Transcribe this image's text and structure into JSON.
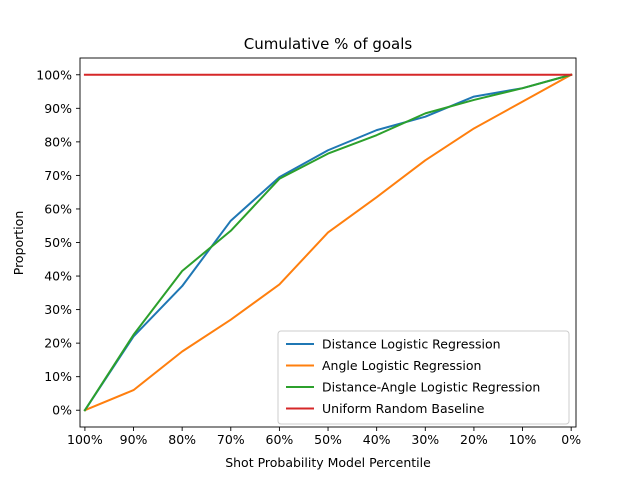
{
  "chart_data": {
    "type": "line",
    "title": "Cumulative % of goals",
    "xlabel": "Shot Probability Model Percentile",
    "ylabel": "Proportion",
    "x": [
      100,
      90,
      80,
      70,
      60,
      50,
      40,
      30,
      20,
      10,
      0
    ],
    "x_tick_labels": [
      "100%",
      "90%",
      "80%",
      "70%",
      "60%",
      "50%",
      "40%",
      "30%",
      "20%",
      "10%",
      "0%"
    ],
    "xlim": [
      100,
      0
    ],
    "y_ticks": [
      0,
      10,
      20,
      30,
      40,
      50,
      60,
      70,
      80,
      90,
      100
    ],
    "y_tick_labels": [
      "0%",
      "10%",
      "20%",
      "30%",
      "40%",
      "50%",
      "60%",
      "70%",
      "80%",
      "90%",
      "100%"
    ],
    "ylim": [
      -5,
      105
    ],
    "grid": false,
    "legend_position": "lower-right",
    "series": [
      {
        "name": "Distance Logistic Regression",
        "color": "#1f77b4",
        "values": [
          0,
          22,
          37,
          56.5,
          69.5,
          77.5,
          83.5,
          87.5,
          93.5,
          96,
          100
        ]
      },
      {
        "name": "Angle Logistic Regression",
        "color": "#ff7f0e",
        "values": [
          0,
          6,
          17.5,
          27,
          37.5,
          53,
          63.5,
          74.5,
          84,
          92,
          100
        ]
      },
      {
        "name": "Distance-Angle Logistic Regression",
        "color": "#2ca02c",
        "values": [
          0,
          22.5,
          41.5,
          53.5,
          69,
          76.5,
          82,
          88.5,
          92.5,
          96,
          100
        ]
      },
      {
        "name": "Uniform Random Baseline",
        "color": "#d62728",
        "values": [
          100,
          100,
          100,
          100,
          100,
          100,
          100,
          100,
          100,
          100,
          100
        ]
      }
    ]
  }
}
